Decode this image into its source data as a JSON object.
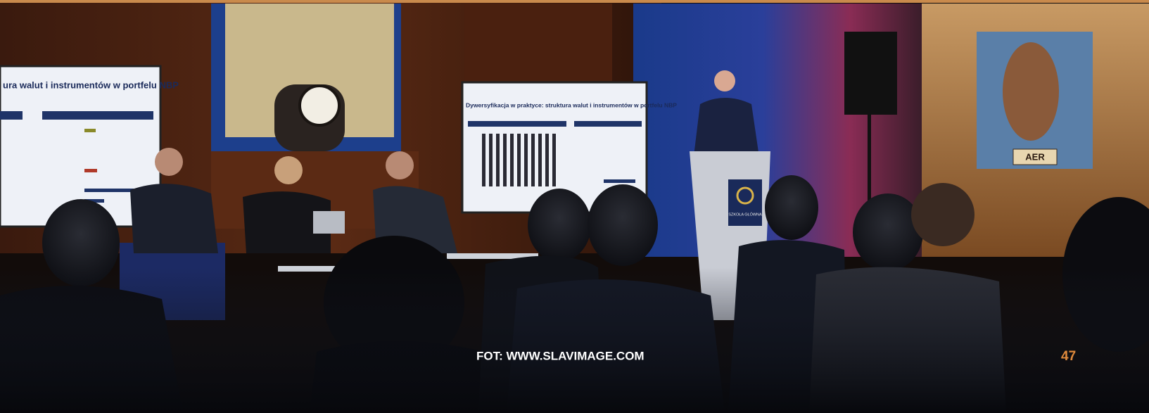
{
  "screens": [
    {
      "title": "ura walut i instrumentów w portfelu NBP"
    },
    {
      "title": "Dywersyfikacja w praktyce: struktura walut i instrumentów w portfelu NBP"
    }
  ],
  "podium_label": "SZKOŁA GŁÓWNA",
  "painting_label": "AER",
  "photo_caption": "FOT: WWW.SLAVIMAGE.COM",
  "page_number": "47"
}
